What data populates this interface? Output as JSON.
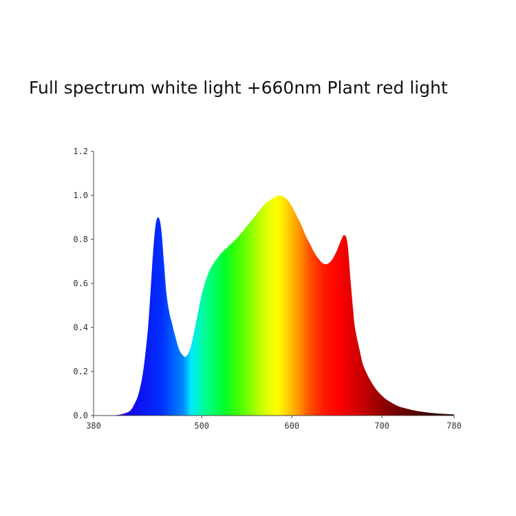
{
  "chart_data": {
    "type": "area",
    "title": "Full spectrum white light +660nm Plant red light",
    "xlabel": "",
    "ylabel": "",
    "xlim": [
      380,
      780
    ],
    "ylim": [
      0,
      1.2
    ],
    "x_ticks": [
      380,
      500,
      600,
      700,
      780
    ],
    "y_ticks": [
      0.0,
      0.2,
      0.4,
      0.6,
      0.8,
      1.0,
      1.2
    ],
    "x_tick_labels": [
      "380",
      "500",
      "600",
      "700",
      "780"
    ],
    "y_tick_labels": [
      "0.0",
      "0.2",
      "0.4",
      "0.6",
      "0.8",
      "1.0",
      "1.2"
    ],
    "grid": false,
    "fill": "visible-spectrum gradient",
    "series": [
      {
        "x": [
          380,
          400,
          410,
          420,
          425,
          430,
          435,
          440,
          443,
          446,
          449,
          452,
          455,
          458,
          461,
          464,
          467,
          470,
          475,
          480,
          483,
          487,
          490,
          495,
          500,
          505,
          510,
          520,
          530,
          540,
          550,
          560,
          570,
          580,
          585,
          590,
          595,
          600,
          605,
          610,
          615,
          620,
          625,
          630,
          635,
          640,
          645,
          650,
          655,
          658,
          661,
          663,
          665,
          668,
          670,
          675,
          680,
          690,
          700,
          710,
          720,
          740,
          760,
          780
        ],
        "y": [
          0.0,
          0.001,
          0.005,
          0.02,
          0.05,
          0.1,
          0.2,
          0.38,
          0.55,
          0.74,
          0.87,
          0.9,
          0.85,
          0.7,
          0.55,
          0.47,
          0.42,
          0.37,
          0.3,
          0.27,
          0.27,
          0.3,
          0.35,
          0.45,
          0.55,
          0.62,
          0.67,
          0.73,
          0.77,
          0.81,
          0.86,
          0.91,
          0.96,
          0.99,
          1.0,
          0.995,
          0.98,
          0.95,
          0.91,
          0.87,
          0.82,
          0.78,
          0.74,
          0.71,
          0.69,
          0.69,
          0.71,
          0.75,
          0.8,
          0.82,
          0.8,
          0.73,
          0.62,
          0.48,
          0.4,
          0.3,
          0.22,
          0.14,
          0.09,
          0.06,
          0.04,
          0.02,
          0.01,
          0.005
        ]
      }
    ]
  }
}
